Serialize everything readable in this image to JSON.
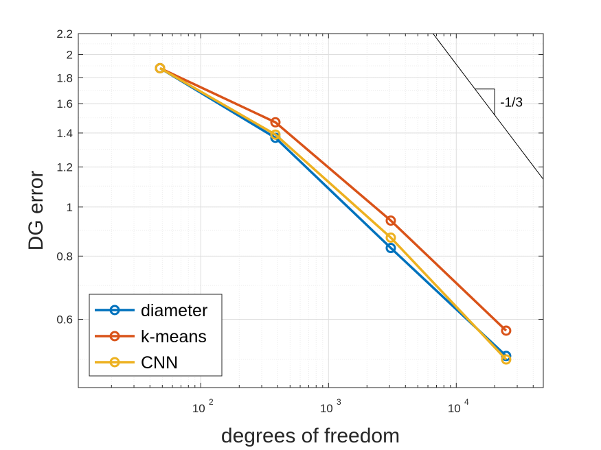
{
  "chart_data": {
    "type": "line",
    "xlabel": "degrees of freedom",
    "ylabel": "DG error",
    "xscale": "log",
    "yscale": "log",
    "xlim": [
      11,
      48000
    ],
    "ylim": [
      0.44,
      2.2
    ],
    "grid": true,
    "minor_grid": true,
    "legend_position": "bottom-left",
    "x_ticks": [
      {
        "value": 100,
        "base": "10",
        "exp": "2"
      },
      {
        "value": 1000,
        "base": "10",
        "exp": "3"
      },
      {
        "value": 10000,
        "base": "10",
        "exp": "4"
      }
    ],
    "y_ticks": [
      {
        "value": 0.6,
        "label": "0.6"
      },
      {
        "value": 0.8,
        "label": "0.8"
      },
      {
        "value": 1.0,
        "label": "1"
      },
      {
        "value": 1.2,
        "label": "1.2"
      },
      {
        "value": 1.4,
        "label": "1.4"
      },
      {
        "value": 1.6,
        "label": "1.6"
      },
      {
        "value": 1.8,
        "label": "1.8"
      },
      {
        "value": 2.0,
        "label": "2"
      },
      {
        "value": 2.2,
        "label": "2.2"
      }
    ],
    "series": [
      {
        "name": "diameter",
        "color": "#0072BD",
        "points": [
          [
            48,
            1.88
          ],
          [
            384,
            1.37
          ],
          [
            3072,
            0.83
          ],
          [
            24576,
            0.508
          ]
        ]
      },
      {
        "name": "k-means",
        "color": "#D95319",
        "points": [
          [
            48,
            1.88
          ],
          [
            384,
            1.47
          ],
          [
            3072,
            0.94
          ],
          [
            24576,
            0.57
          ]
        ]
      },
      {
        "name": "CNN",
        "color": "#EDB120",
        "points": [
          [
            48,
            1.88
          ],
          [
            384,
            1.39
          ],
          [
            3072,
            0.87
          ],
          [
            24576,
            0.5
          ]
        ]
      }
    ],
    "slope_annotation": {
      "label": "-1/3",
      "slope": -0.3333,
      "line_x": [
        6200,
        48000
      ],
      "triangle_x": [
        14000,
        20000
      ]
    }
  }
}
